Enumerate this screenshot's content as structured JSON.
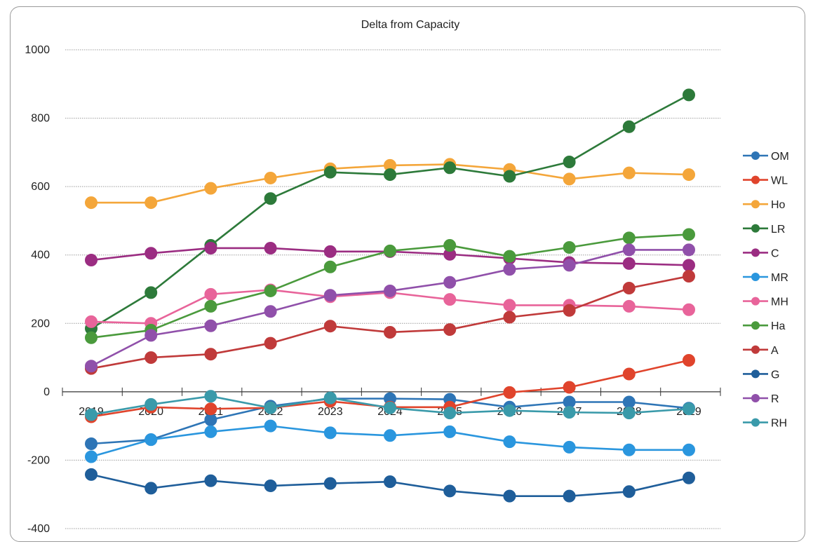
{
  "chart_data": {
    "type": "line",
    "title": "Delta from Capacity",
    "xlabel": "",
    "ylabel": "",
    "ylim": [
      -400,
      1000
    ],
    "y_ticks": [
      -400,
      -200,
      0,
      200,
      400,
      600,
      800,
      1000
    ],
    "grid": true,
    "legend_position": "right",
    "categories": [
      "2019",
      "2020",
      "2021",
      "2022",
      "2023",
      "2024",
      "2025",
      "2026",
      "2027",
      "2028",
      "2029"
    ],
    "series": [
      {
        "name": "OM",
        "color": "#2e75b6",
        "values": [
          -152,
          -140,
          -82,
          -42,
          -20,
          -20,
          -22,
          -45,
          -30,
          -30,
          -48
        ]
      },
      {
        "name": "WL",
        "color": "#e0442c",
        "values": [
          -73,
          -45,
          -50,
          -47,
          -28,
          -45,
          -45,
          -2,
          13,
          52,
          92
        ]
      },
      {
        "name": "Ho",
        "color": "#f4a63a",
        "values": [
          553,
          553,
          595,
          625,
          652,
          662,
          665,
          650,
          622,
          640,
          635
        ]
      },
      {
        "name": "LR",
        "color": "#2d7a3a",
        "values": [
          185,
          290,
          428,
          565,
          642,
          635,
          655,
          630,
          672,
          775,
          868
        ]
      },
      {
        "name": "C",
        "color": "#9b2d82",
        "values": [
          385,
          405,
          420,
          420,
          410,
          410,
          402,
          390,
          378,
          375,
          370
        ]
      },
      {
        "name": "MR",
        "color": "#2a96de",
        "values": [
          -190,
          -140,
          -117,
          -100,
          -120,
          -128,
          -117,
          -146,
          -162,
          -170,
          -170
        ]
      },
      {
        "name": "MH",
        "color": "#e8649a",
        "values": [
          205,
          200,
          285,
          298,
          278,
          290,
          270,
          253,
          253,
          250,
          240
        ]
      },
      {
        "name": "Ha",
        "color": "#4a9a3c",
        "values": [
          158,
          180,
          250,
          295,
          365,
          412,
          428,
          396,
          422,
          450,
          460
        ]
      },
      {
        "name": "A",
        "color": "#c03a3a",
        "values": [
          68,
          100,
          110,
          142,
          192,
          174,
          182,
          218,
          238,
          303,
          338
        ]
      },
      {
        "name": "G",
        "color": "#1f5e9a",
        "values": [
          -242,
          -282,
          -260,
          -275,
          -268,
          -263,
          -290,
          -305,
          -305,
          -292,
          -252
        ]
      },
      {
        "name": "R",
        "color": "#9050aa",
        "values": [
          75,
          165,
          193,
          235,
          282,
          295,
          320,
          358,
          370,
          415,
          415
        ]
      },
      {
        "name": "RH",
        "color": "#3a9aaa",
        "values": [
          -67,
          -37,
          -13,
          -47,
          -18,
          -47,
          -62,
          -55,
          -60,
          -62,
          -50
        ]
      }
    ]
  }
}
